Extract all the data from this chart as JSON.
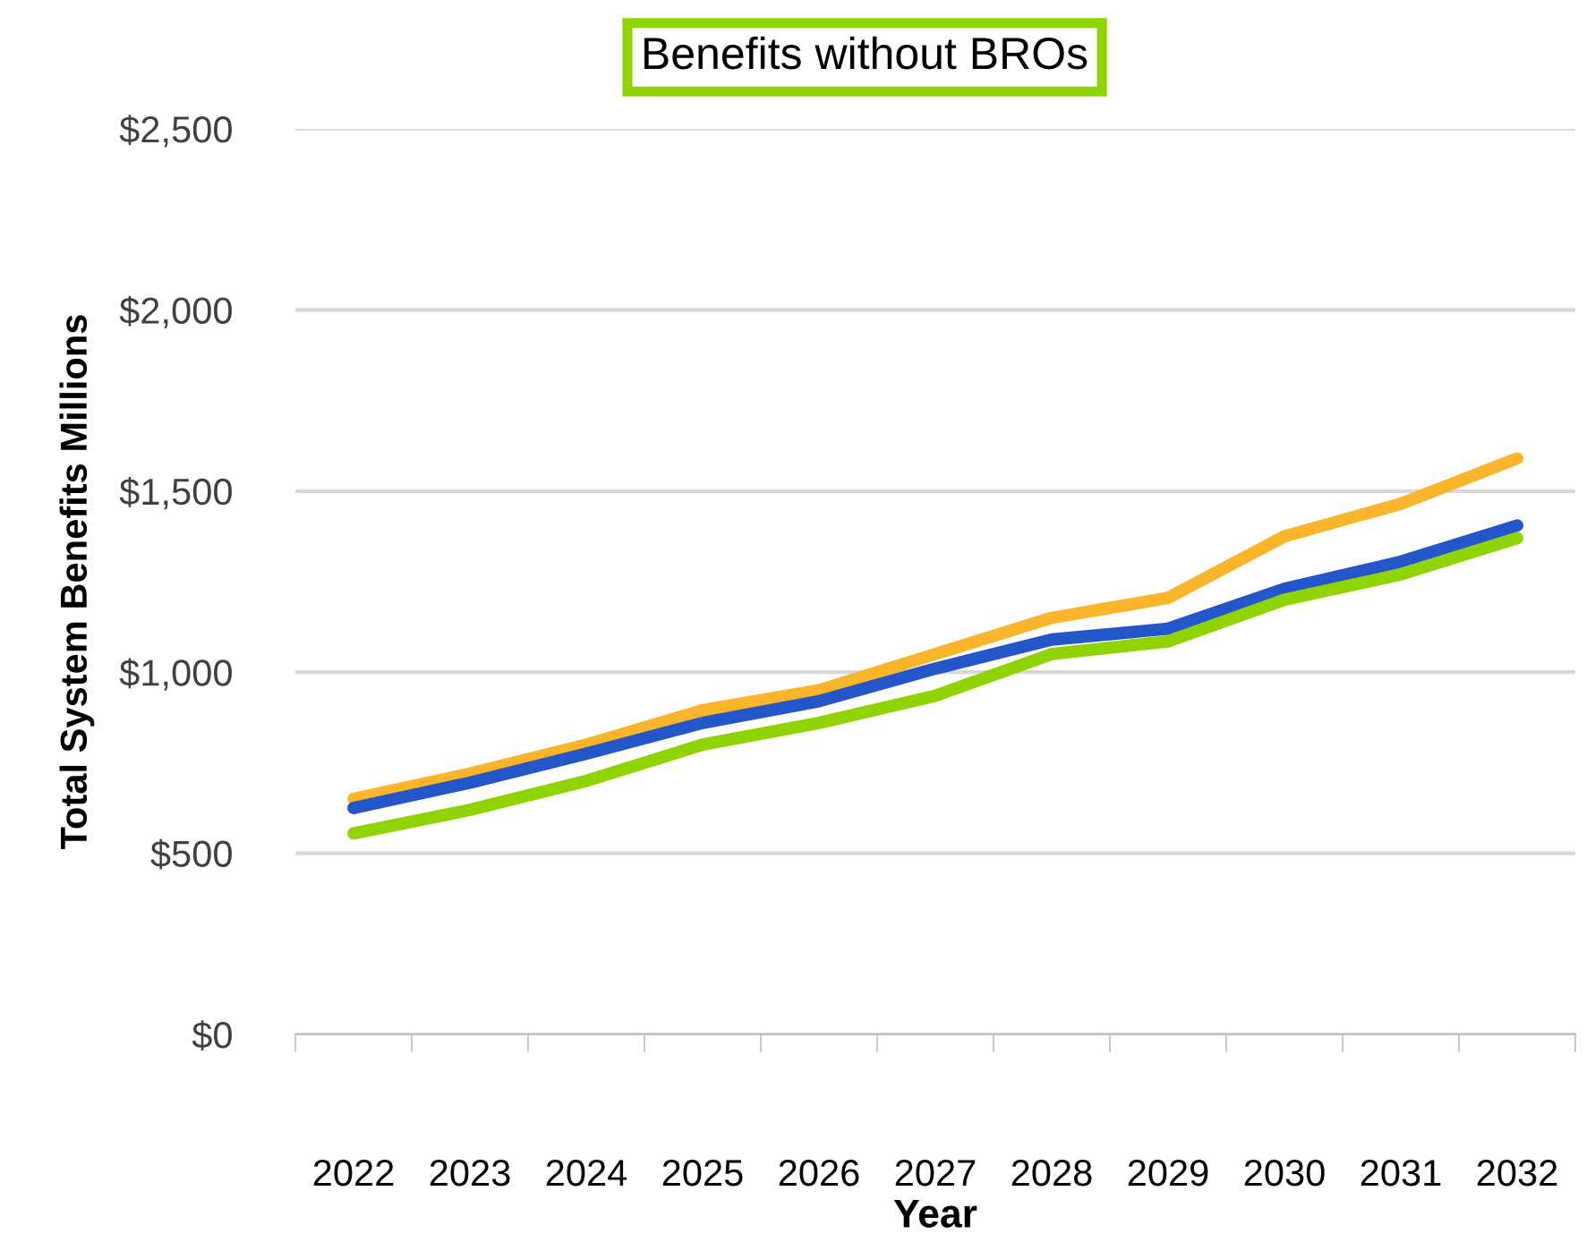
{
  "chart_data": {
    "type": "line",
    "title": "Benefits without BROs",
    "xlabel": "Year",
    "ylabel": "Total System Benefits Millions",
    "categories": [
      "2022",
      "2023",
      "2024",
      "2025",
      "2026",
      "2027",
      "2028",
      "2029",
      "2030",
      "2031",
      "2032"
    ],
    "series": [
      {
        "color": "#fbb52b",
        "values": [
          650,
          720,
          800,
          895,
          950,
          1050,
          1150,
          1205,
          1375,
          1465,
          1590
        ]
      },
      {
        "color": "#2356c8",
        "values": [
          625,
          695,
          775,
          860,
          920,
          1010,
          1090,
          1120,
          1230,
          1305,
          1405
        ]
      },
      {
        "color": "#8fd400",
        "values": [
          555,
          620,
          700,
          800,
          860,
          935,
          1050,
          1085,
          1200,
          1270,
          1370
        ]
      }
    ],
    "ylim": [
      0,
      2500
    ],
    "yticks": [
      {
        "value": 0,
        "label": "$0"
      },
      {
        "value": 500,
        "label": "$500"
      },
      {
        "value": 1000,
        "label": "$1,000"
      },
      {
        "value": 1500,
        "label": "$1,500"
      },
      {
        "value": 2000,
        "label": "$2,000"
      },
      {
        "value": 2500,
        "label": "$2,500"
      }
    ],
    "grid": "y",
    "legend": false,
    "marker": "none",
    "line_style": "solid"
  }
}
